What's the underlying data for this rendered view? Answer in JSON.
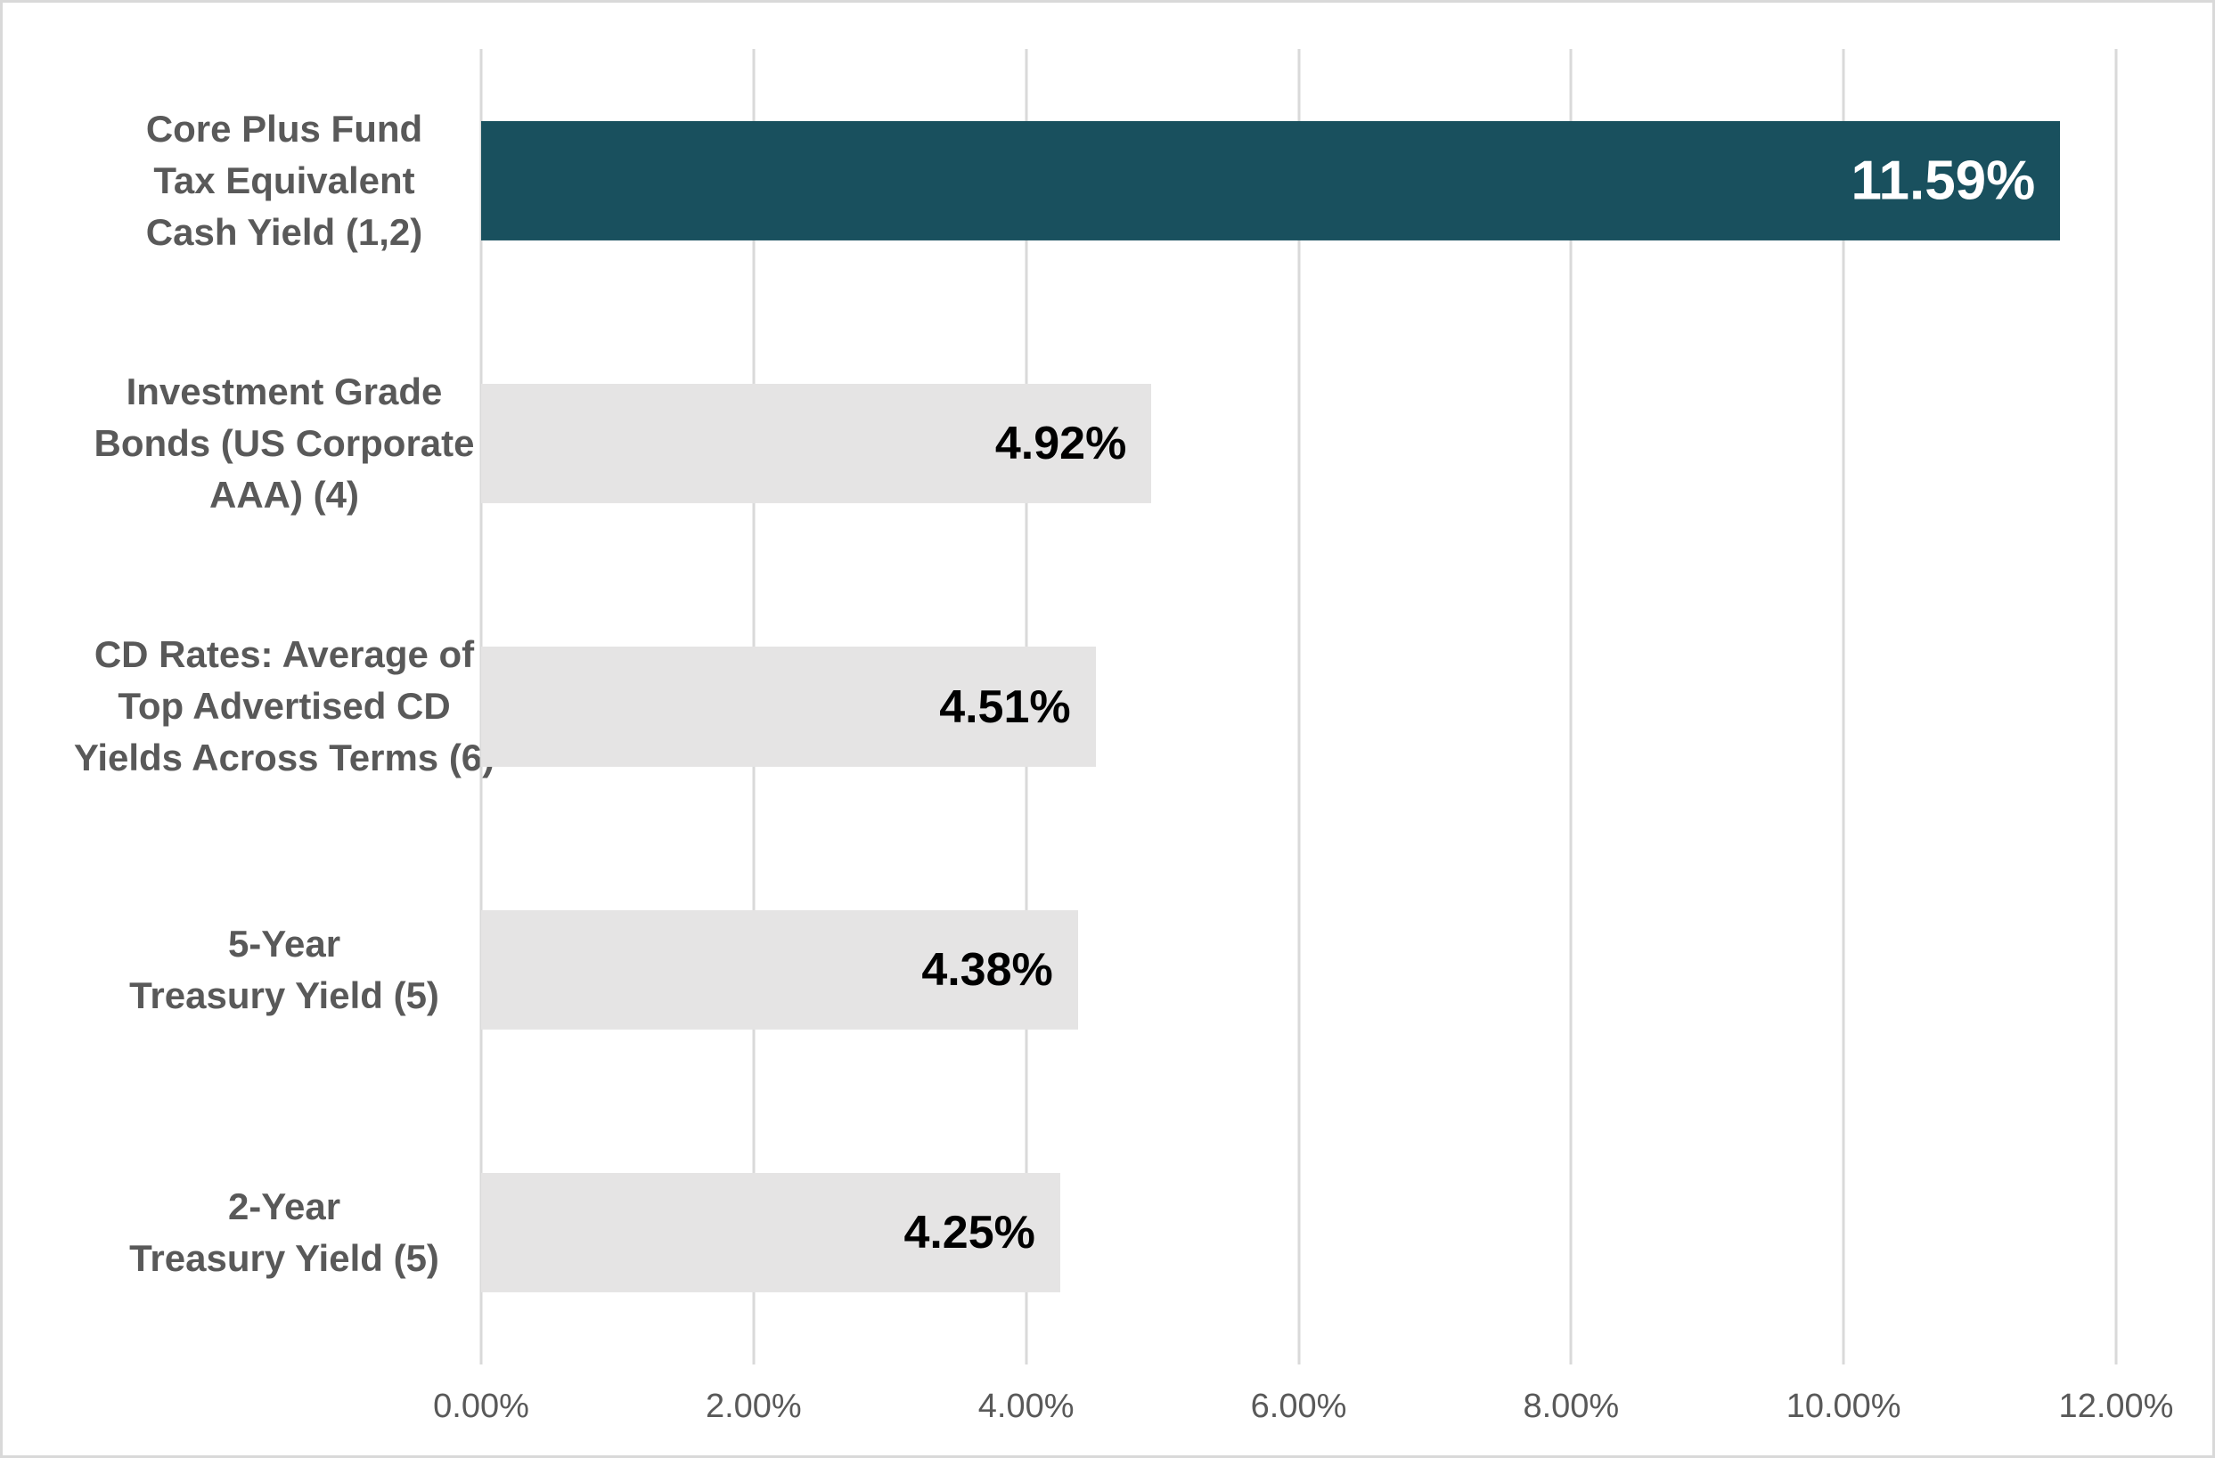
{
  "chart_data": {
    "type": "bar",
    "orientation": "horizontal",
    "title": "",
    "xlabel": "",
    "ylabel": "",
    "xlim": [
      0,
      12
    ],
    "grid": true,
    "legend": false,
    "categories": [
      "Core Plus Fund Tax Equivalent Cash Yield (1,2)",
      "Investment Grade Bonds (US Corporate AAA) (4)",
      "CD Rates: Average of Top Advertised CD Yields Across Terms (6)",
      "5-Year Treasury Yield (5)",
      "2-Year Treasury Yield (5)"
    ],
    "category_lines": [
      [
        "Core Plus Fund",
        "Tax Equivalent",
        "Cash Yield (1,2)"
      ],
      [
        "Investment Grade",
        "Bonds (US Corporate",
        "AAA) (4)"
      ],
      [
        "CD Rates: Average of",
        "Top Advertised CD",
        "Yields Across Terms (6)"
      ],
      [
        "5-Year",
        "Treasury Yield (5)"
      ],
      [
        "2-Year",
        "Treasury Yield (5)"
      ]
    ],
    "values": [
      11.59,
      4.92,
      4.51,
      4.38,
      4.25
    ],
    "value_labels": [
      "11.59%",
      "4.92%",
      "4.51%",
      "4.38%",
      "4.25%"
    ],
    "x_ticks": [
      "0.00%",
      "2.00%",
      "4.00%",
      "6.00%",
      "8.00%",
      "10.00%",
      "12.00%"
    ],
    "x_tick_values": [
      0,
      2,
      4,
      6,
      8,
      10,
      12
    ],
    "highlight_index": 0,
    "colors": {
      "highlight_bar": "#19505e",
      "default_bar": "#e5e4e4",
      "highlight_value_text": "#ffffff",
      "value_text": "#000000",
      "category_text": "#595959",
      "tick_text": "#595959",
      "gridline": "#d9d9d9",
      "border": "#d9d9d9",
      "background": "#ffffff"
    },
    "value_font_px": {
      "highlight": 62,
      "default": 52
    }
  }
}
